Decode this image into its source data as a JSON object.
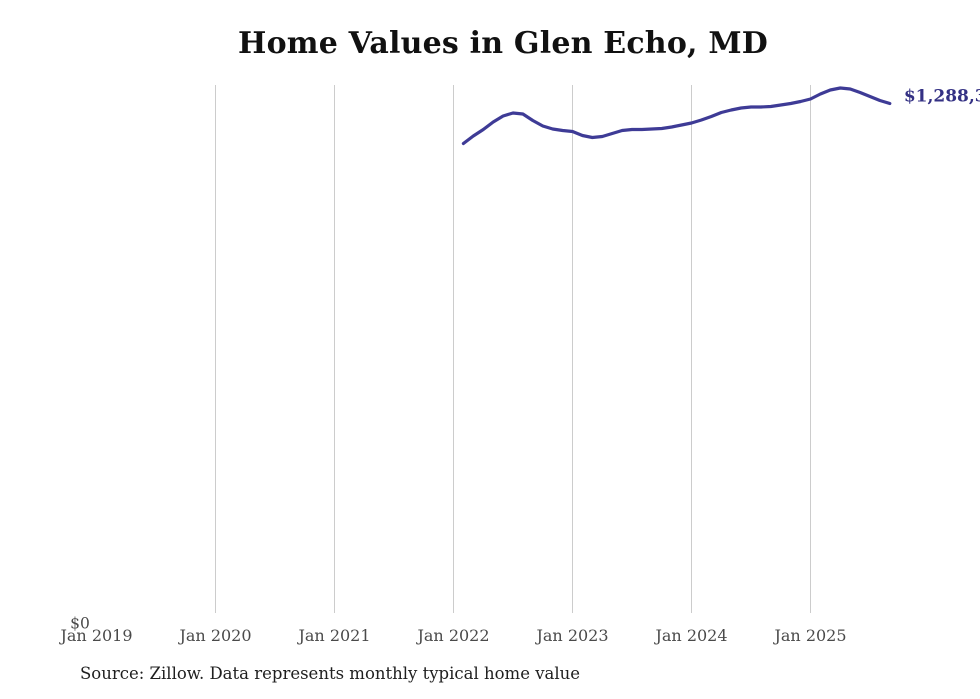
{
  "title": "Home Values in Glen Echo, MD",
  "source_note": "Source: Zillow. Data represents monthly typical home value",
  "colors": {
    "line": "#3e3b96",
    "end_label": "#343184",
    "grid": "#cccccc",
    "tick_label": "#4a4a4a",
    "title": "#111111",
    "source": "#1f1f1f",
    "background": "#ffffff"
  },
  "chart_data": {
    "type": "line",
    "title": "Home Values in Glen Echo, MD",
    "legend": false,
    "grid": "vertical-year-lines",
    "ylim": [
      0,
      1335000
    ],
    "y_tick_labels": [
      "$0"
    ],
    "x_ticks": [
      {
        "label": "Jan 2019",
        "year": 2019,
        "gridline": false
      },
      {
        "label": "Jan 2020",
        "year": 2020,
        "gridline": true
      },
      {
        "label": "Jan 2021",
        "year": 2021,
        "gridline": true
      },
      {
        "label": "Jan 2022",
        "year": 2022,
        "gridline": true
      },
      {
        "label": "Jan 2023",
        "year": 2023,
        "gridline": true
      },
      {
        "label": "Jan 2024",
        "year": 2024,
        "gridline": true
      },
      {
        "label": "Jan 2025",
        "year": 2025,
        "gridline": true
      }
    ],
    "months": [
      "2022-02",
      "2022-03",
      "2022-04",
      "2022-05",
      "2022-06",
      "2022-07",
      "2022-08",
      "2022-09",
      "2022-10",
      "2022-11",
      "2022-12",
      "2023-01",
      "2023-02",
      "2023-03",
      "2023-04",
      "2023-05",
      "2023-06",
      "2023-07",
      "2023-08",
      "2023-09",
      "2023-10",
      "2023-11",
      "2023-12",
      "2024-01",
      "2024-02",
      "2024-03",
      "2024-04",
      "2024-05",
      "2024-06",
      "2024-07",
      "2024-08",
      "2024-09",
      "2024-10",
      "2024-11",
      "2024-12",
      "2025-01",
      "2025-02",
      "2025-03",
      "2025-04",
      "2025-05",
      "2025-06",
      "2025-07",
      "2025-08",
      "2025-09"
    ],
    "values": [
      1187100,
      1206000,
      1222400,
      1241400,
      1256600,
      1264200,
      1261700,
      1245200,
      1231300,
      1223700,
      1219900,
      1217400,
      1207300,
      1202200,
      1204800,
      1212400,
      1219900,
      1222400,
      1222400,
      1223700,
      1224900,
      1228700,
      1233800,
      1238900,
      1246400,
      1255300,
      1265400,
      1271700,
      1276800,
      1279300,
      1279300,
      1280600,
      1284400,
      1288200,
      1293300,
      1299600,
      1312200,
      1322300,
      1327400,
      1324800,
      1316000,
      1305900,
      1295800,
      1288300
    ],
    "end_label": "$1,288,3"
  }
}
